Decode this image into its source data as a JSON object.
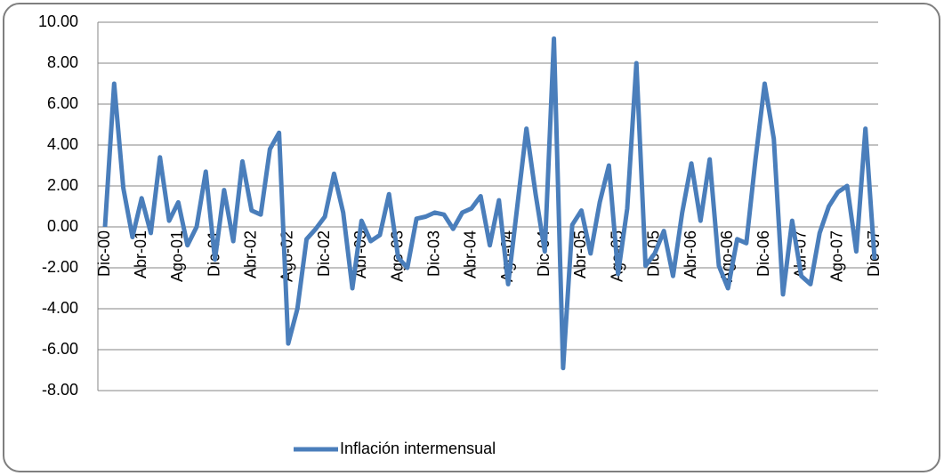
{
  "chart_data": {
    "type": "line",
    "categories": [
      "Dic-00",
      null,
      null,
      null,
      "Abr-01",
      null,
      null,
      null,
      "Ago-01",
      null,
      null,
      null,
      "Dic-01",
      null,
      null,
      null,
      "Abr-02",
      null,
      null,
      null,
      "Ago-02",
      null,
      null,
      null,
      "Dic-02",
      null,
      null,
      null,
      "Abr-03",
      null,
      null,
      null,
      "Ago-03",
      null,
      null,
      null,
      "Dic-03",
      null,
      null,
      null,
      "Abr-04",
      null,
      null,
      null,
      "Ago-04",
      null,
      null,
      null,
      "Dic-04",
      null,
      null,
      null,
      "Abr-05",
      null,
      null,
      null,
      "Ago-05",
      null,
      null,
      null,
      "Dic-05",
      null,
      null,
      null,
      "Abr-06",
      null,
      null,
      null,
      "Ago-06",
      null,
      null,
      null,
      "Dic-06",
      null,
      null,
      null,
      "Abr-07",
      null,
      null,
      null,
      "Ago-07",
      null,
      null,
      null,
      "Dic-07"
    ],
    "series": [
      {
        "name": "Inflación intermensual",
        "color": "#4a7ebb",
        "values": [
          0.0,
          7.0,
          1.9,
          -0.5,
          1.4,
          -0.3,
          3.4,
          0.3,
          1.2,
          -0.9,
          0.0,
          2.7,
          -1.6,
          1.8,
          -0.7,
          3.2,
          0.8,
          0.6,
          3.8,
          4.6,
          -5.7,
          -4.0,
          -0.6,
          -0.1,
          0.5,
          2.6,
          0.7,
          -3.0,
          0.3,
          -0.7,
          -0.4,
          1.6,
          -1.5,
          -2.0,
          0.4,
          0.5,
          0.7,
          0.6,
          -0.1,
          0.7,
          0.9,
          1.5,
          -0.9,
          1.3,
          -2.8,
          1.0,
          4.8,
          1.6,
          -1.2,
          9.2,
          -6.9,
          0.1,
          0.8,
          -1.3,
          1.2,
          3.0,
          -2.3,
          0.9,
          8.0,
          -1.9,
          -1.3,
          -0.2,
          -2.4,
          0.7,
          3.1,
          0.3,
          3.3,
          -1.9,
          -3.0,
          -0.6,
          -0.8,
          3.3,
          7.0,
          4.3,
          -3.3,
          0.3,
          -2.4,
          -2.8,
          -0.3,
          1.0,
          1.7,
          2.0,
          -1.2,
          4.8,
          -1.6
        ]
      }
    ],
    "ylim": [
      -8,
      10
    ],
    "yticks": [
      {
        "value": -8,
        "label": "-8.00"
      },
      {
        "value": -6,
        "label": "-6.00"
      },
      {
        "value": -4,
        "label": "-4.00"
      },
      {
        "value": -2,
        "label": "-2.00"
      },
      {
        "value": 0,
        "label": "0.00"
      },
      {
        "value": 2,
        "label": "2.00"
      },
      {
        "value": 4,
        "label": "4.00"
      },
      {
        "value": 6,
        "label": "6.00"
      },
      {
        "value": 8,
        "label": "8.00"
      },
      {
        "value": 10,
        "label": "10.00"
      }
    ],
    "grid": true,
    "legend": "bottom"
  }
}
